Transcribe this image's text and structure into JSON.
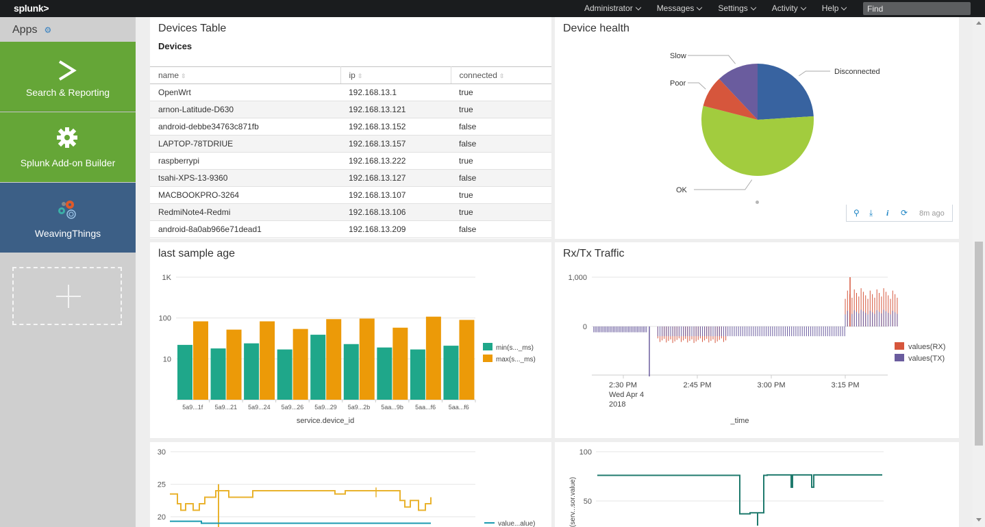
{
  "topbar": {
    "logo": "splunk>",
    "nav": [
      {
        "label": "Administrator"
      },
      {
        "label": "Messages"
      },
      {
        "label": "Settings"
      },
      {
        "label": "Activity"
      },
      {
        "label": "Help"
      }
    ],
    "search_placeholder": "Find"
  },
  "sidebar": {
    "header": "Apps",
    "apps": [
      {
        "label": "Search & Reporting",
        "icon": "chevron-prompt-icon"
      },
      {
        "label": "Splunk Add-on Builder",
        "icon": "gear-icon"
      },
      {
        "label": "WeavingThings",
        "icon": "weaving-gears-icon"
      }
    ]
  },
  "devices_panel": {
    "title": "Devices Table",
    "table_title": "Devices",
    "columns": [
      "name",
      "ip",
      "connected"
    ],
    "rows": [
      [
        "OpenWrt",
        "192.168.13.1",
        "true"
      ],
      [
        "arnon-Latitude-D630",
        "192.168.13.121",
        "true"
      ],
      [
        "android-debbe34763c871fb",
        "192.168.13.152",
        "false"
      ],
      [
        "LAPTOP-78TDRIUE",
        "192.168.13.157",
        "false"
      ],
      [
        "raspberrypi",
        "192.168.13.222",
        "true"
      ],
      [
        "tsahi-XPS-13-9360",
        "192.168.13.127",
        "false"
      ],
      [
        "MACBOOKPRO-3264",
        "192.168.13.107",
        "true"
      ],
      [
        "RedmiNote4-Redmi",
        "192.168.13.106",
        "true"
      ],
      [
        "android-8a0ab966e71dead1",
        "192.168.13.209",
        "false"
      ]
    ]
  },
  "health_panel": {
    "title": "Device health",
    "toolbar_time": "8m ago",
    "colors": {
      "Disconnected": "#3863a0",
      "OK": "#a2cc3e",
      "Poor": "#d6563c",
      "Slow": "#6a5c9e"
    }
  },
  "age_panel": {
    "title": "last sample age"
  },
  "traffic_panel": {
    "title": "Rx/Tx Traffic",
    "colors": {
      "RX": "#d6563c",
      "TX": "#6a5c9e"
    }
  },
  "bottom_left": {
    "legend": "value...alue)"
  },
  "bottom_right": {
    "ylabel": "s(serv...sor.value)"
  },
  "chart_data": [
    {
      "type": "pie",
      "title": "Device health",
      "categories": [
        "Disconnected",
        "OK",
        "Poor",
        "Slow"
      ],
      "values": [
        24,
        55,
        9,
        12
      ]
    },
    {
      "type": "bar",
      "title": "last sample age",
      "xlabel": "service.device_id",
      "ylabel": "",
      "yscale": "log",
      "ylim": [
        1,
        1000
      ],
      "yticks": [
        "10",
        "100",
        "1K"
      ],
      "categories": [
        "5a9...1f",
        "5a9...21",
        "5a9...24",
        "5a9...26",
        "5a9...29",
        "5a9...2b",
        "5aa...9b",
        "5aa...f6",
        "5aa...f6"
      ],
      "series": [
        {
          "name": "min(s..._ms)",
          "color": "#1fa78a",
          "values": [
            22,
            18,
            24,
            17,
            39,
            23,
            19,
            17,
            21
          ]
        },
        {
          "name": "max(s..._ms)",
          "color": "#ec9a08",
          "values": [
            83,
            52,
            83,
            54,
            94,
            97,
            58,
            108,
            90
          ]
        }
      ],
      "legend": "right"
    },
    {
      "type": "bar",
      "title": "Rx/Tx Traffic",
      "xlabel": "_time",
      "ylim": [
        -1000,
        1000
      ],
      "yticks": [
        "0",
        "1,000"
      ],
      "xticks": [
        "2:30 PM\nWed Apr 4\n2018",
        "2:45 PM",
        "3:00 PM",
        "3:15 PM"
      ],
      "series": [
        {
          "name": "values(RX)",
          "segments": [
            {
              "from": "2:37 PM",
              "to": "2:51 PM",
              "min": -350,
              "max": 0
            },
            {
              "from": "3:15 PM",
              "to": "3:26 PM",
              "min": 0,
              "max": 800
            }
          ]
        },
        {
          "name": "values(TX)",
          "segments": [
            {
              "from": "2:24 PM",
              "to": "2:35 PM",
              "min": -120,
              "max": 0
            },
            {
              "from": "2:37 PM",
              "to": "3:15 PM",
              "min": -200,
              "max": 0
            },
            {
              "from": "3:15 PM",
              "to": "3:26 PM",
              "min": 0,
              "max": 350
            }
          ]
        }
      ],
      "legend": "right"
    },
    {
      "type": "line",
      "yticks": [
        "20",
        "25",
        "30"
      ],
      "ylim": [
        19,
        31
      ],
      "series": [
        {
          "name": "value...alue)",
          "color": "#1b9ab0"
        },
        {
          "color": "#e9b22c"
        }
      ]
    },
    {
      "type": "line",
      "ylabel": "s(serv...sor.value)",
      "yticks": [
        "50",
        "100"
      ],
      "ylim": [
        25,
        105
      ],
      "series": [
        {
          "color": "#1f7a6d"
        }
      ]
    }
  ]
}
